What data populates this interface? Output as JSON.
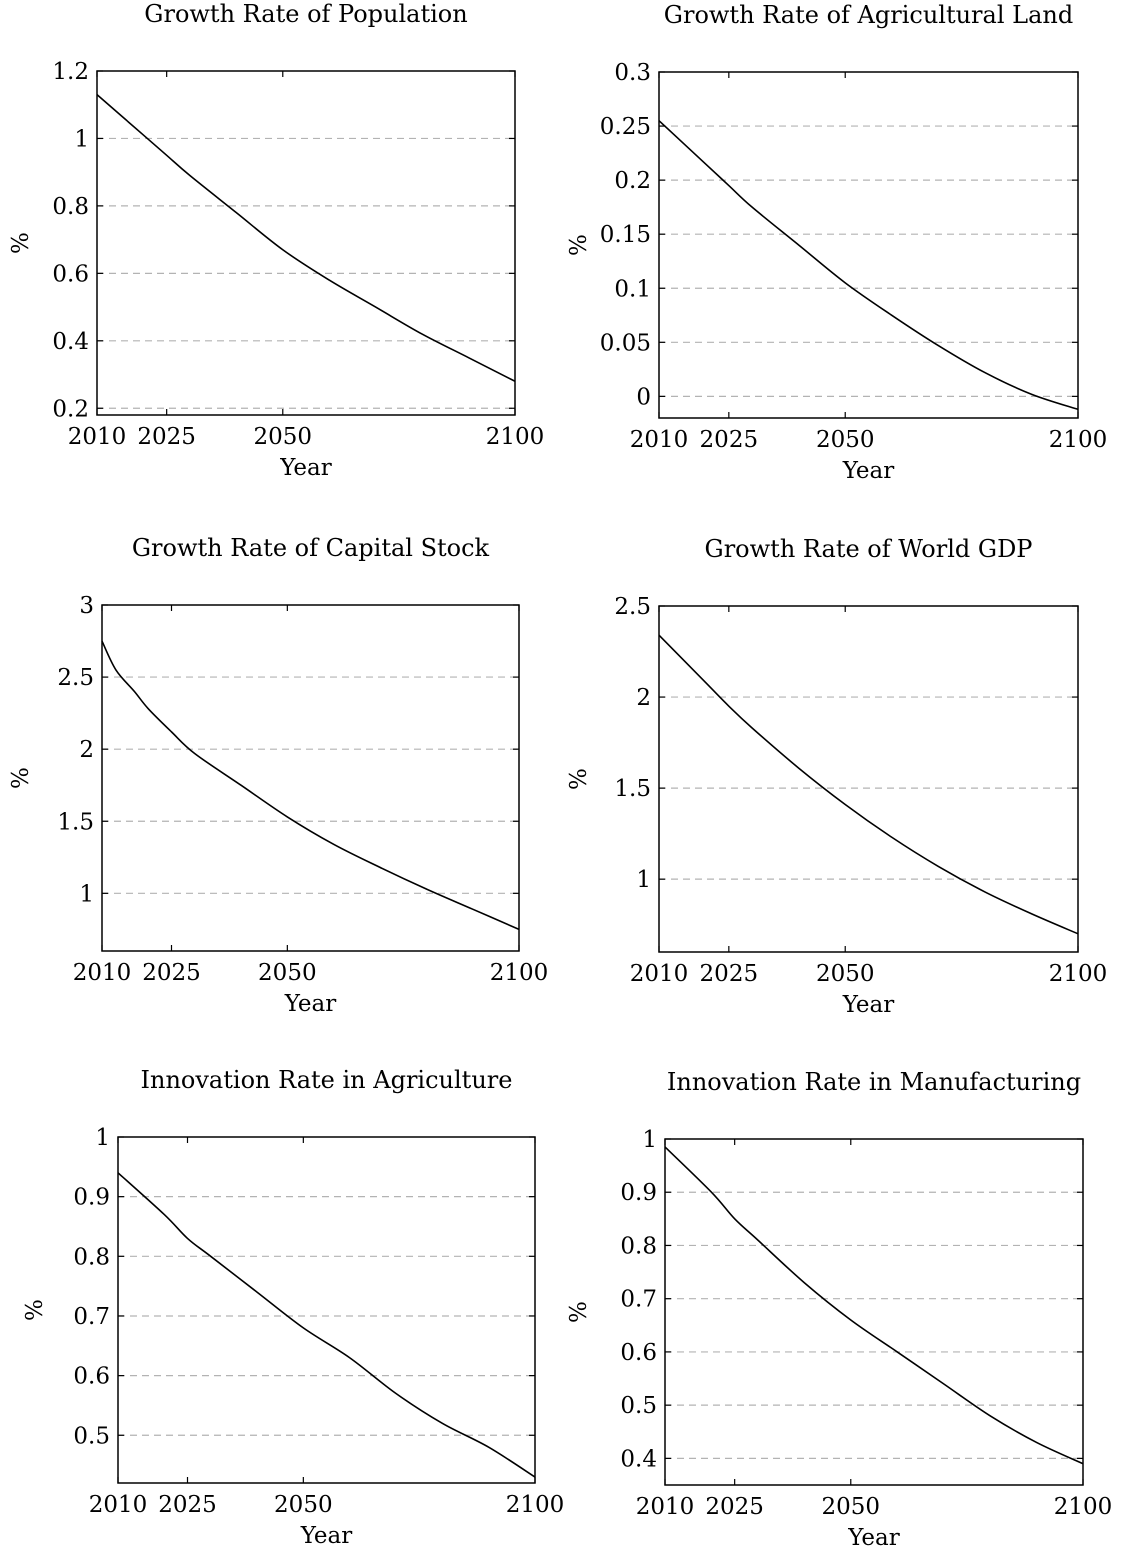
{
  "chart_data": [
    {
      "type": "line",
      "title": "Growth Rate of Population",
      "xlabel": "Year",
      "ylabel": "%",
      "xlim": [
        2010,
        2100
      ],
      "ylim": [
        0.18,
        1.2
      ],
      "xticks": [
        2010,
        2025,
        2050,
        2100
      ],
      "yticks": [
        0.2,
        0.4,
        0.6,
        0.8,
        1,
        1.2
      ],
      "ytick_labels": [
        "0.2",
        "0.4",
        "0.6",
        "0.8",
        "1",
        "1.2"
      ],
      "grid": "horizontal-dashed",
      "series": [
        {
          "x": [
            2010,
            2020,
            2025,
            2030,
            2040,
            2050,
            2060,
            2070,
            2080,
            2090,
            2100
          ],
          "y": [
            1.13,
            1.01,
            0.95,
            0.89,
            0.78,
            0.67,
            0.58,
            0.5,
            0.42,
            0.35,
            0.28
          ]
        }
      ]
    },
    {
      "type": "line",
      "title": "Growth Rate of Agricultural Land",
      "xlabel": "Year",
      "ylabel": "%",
      "xlim": [
        2010,
        2100
      ],
      "ylim": [
        -0.02,
        0.3
      ],
      "xticks": [
        2010,
        2025,
        2050,
        2100
      ],
      "yticks": [
        0,
        0.05,
        0.1,
        0.15,
        0.2,
        0.25,
        0.3
      ],
      "ytick_labels": [
        "0",
        "0.05",
        "0.1",
        "0.15",
        "0.2",
        "0.25",
        "0.3"
      ],
      "grid": "horizontal-dashed",
      "series": [
        {
          "x": [
            2010,
            2020,
            2025,
            2030,
            2040,
            2050,
            2060,
            2070,
            2080,
            2090,
            2100
          ],
          "y": [
            0.255,
            0.215,
            0.195,
            0.175,
            0.14,
            0.105,
            0.075,
            0.047,
            0.022,
            0.002,
            -0.012
          ]
        }
      ]
    },
    {
      "type": "line",
      "title": "Growth Rate of Capital Stock",
      "xlabel": "Year",
      "ylabel": "%",
      "xlim": [
        2010,
        2100
      ],
      "ylim": [
        0.6,
        3
      ],
      "xticks": [
        2010,
        2025,
        2050,
        2100
      ],
      "yticks": [
        1,
        1.5,
        2,
        2.5,
        3
      ],
      "ytick_labels": [
        "1",
        "1.5",
        "2",
        "2.5",
        "3"
      ],
      "grid": "horizontal-dashed",
      "series": [
        {
          "x": [
            2010,
            2013,
            2017,
            2020,
            2025,
            2030,
            2040,
            2050,
            2060,
            2070,
            2080,
            2090,
            2100
          ],
          "y": [
            2.75,
            2.55,
            2.4,
            2.28,
            2.12,
            1.97,
            1.75,
            1.53,
            1.34,
            1.18,
            1.03,
            0.89,
            0.75
          ]
        }
      ]
    },
    {
      "type": "line",
      "title": "Growth Rate of World GDP",
      "xlabel": "Year",
      "ylabel": "%",
      "xlim": [
        2010,
        2100
      ],
      "ylim": [
        0.6,
        2.5
      ],
      "xticks": [
        2010,
        2025,
        2050,
        2100
      ],
      "yticks": [
        1,
        1.5,
        2,
        2.5
      ],
      "ytick_labels": [
        "1",
        "1.5",
        "2",
        "2.5"
      ],
      "grid": "horizontal-dashed",
      "series": [
        {
          "x": [
            2010,
            2020,
            2025,
            2030,
            2040,
            2050,
            2060,
            2070,
            2080,
            2090,
            2100
          ],
          "y": [
            2.34,
            2.08,
            1.95,
            1.83,
            1.61,
            1.41,
            1.23,
            1.07,
            0.93,
            0.81,
            0.7
          ]
        }
      ]
    },
    {
      "type": "line",
      "title": "Innovation Rate in Agriculture",
      "xlabel": "Year",
      "ylabel": "%",
      "xlim": [
        2010,
        2100
      ],
      "ylim": [
        0.42,
        1
      ],
      "xticks": [
        2010,
        2025,
        2050,
        2100
      ],
      "yticks": [
        0.5,
        0.6,
        0.7,
        0.8,
        0.9,
        1
      ],
      "ytick_labels": [
        "0.5",
        "0.6",
        "0.7",
        "0.8",
        "0.9",
        "1"
      ],
      "grid": "horizontal-dashed",
      "series": [
        {
          "x": [
            2010,
            2020,
            2025,
            2030,
            2040,
            2050,
            2060,
            2070,
            2080,
            2090,
            2100
          ],
          "y": [
            0.94,
            0.87,
            0.83,
            0.8,
            0.74,
            0.68,
            0.63,
            0.57,
            0.52,
            0.48,
            0.43
          ]
        }
      ]
    },
    {
      "type": "line",
      "title": "Innovation Rate in Manufacturing",
      "xlabel": "Year",
      "ylabel": "%",
      "xlim": [
        2010,
        2100
      ],
      "ylim": [
        0.35,
        1
      ],
      "xticks": [
        2010,
        2025,
        2050,
        2100
      ],
      "yticks": [
        0.4,
        0.5,
        0.6,
        0.7,
        0.8,
        0.9,
        1
      ],
      "ytick_labels": [
        "0.4",
        "0.5",
        "0.6",
        "0.7",
        "0.8",
        "0.9",
        "1"
      ],
      "grid": "horizontal-dashed",
      "series": [
        {
          "x": [
            2010,
            2020,
            2025,
            2030,
            2040,
            2050,
            2060,
            2070,
            2080,
            2090,
            2100
          ],
          "y": [
            0.985,
            0.9,
            0.85,
            0.81,
            0.73,
            0.66,
            0.6,
            0.54,
            0.48,
            0.43,
            0.39
          ]
        }
      ]
    }
  ]
}
